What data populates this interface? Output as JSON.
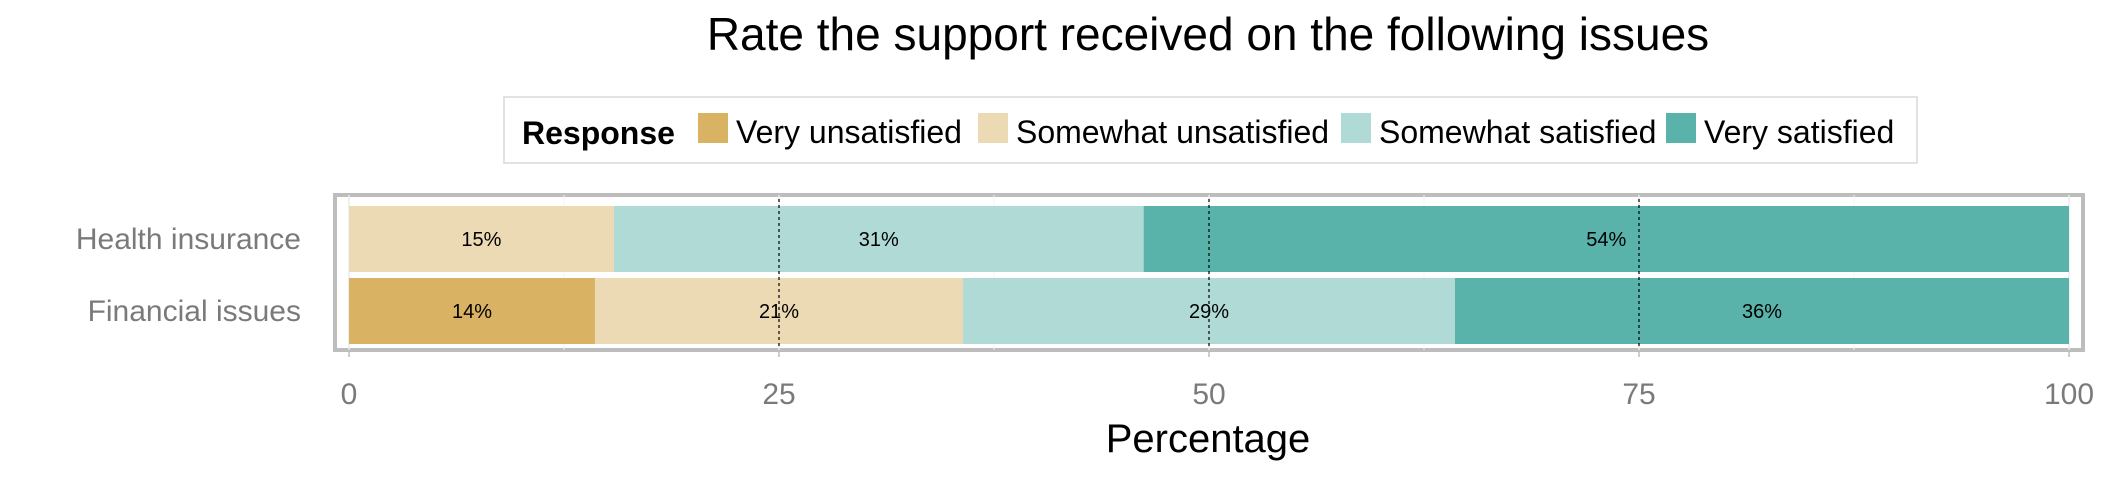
{
  "chart_data": {
    "type": "bar",
    "orientation": "horizontal",
    "stacked": true,
    "title": "Rate the support received on the following issues",
    "xlabel": "Percentage",
    "ylabel": "",
    "xlim": [
      0,
      100
    ],
    "x_ticks": [
      0,
      25,
      50,
      75,
      100
    ],
    "x_tick_labels": [
      "0",
      "25",
      "50",
      "75",
      "100"
    ],
    "reference_lines": [
      25,
      50,
      75
    ],
    "grid": true,
    "legend": {
      "title": "Response",
      "position": "top"
    },
    "categories": [
      "Health insurance",
      "Financial issues"
    ],
    "series": [
      {
        "name": "Very unsatisfied",
        "color": "#d9b264",
        "values": [
          0,
          14.3
        ],
        "labels": [
          "",
          "14%"
        ]
      },
      {
        "name": "Somewhat unsatisfied",
        "color": "#ebdab4",
        "values": [
          15.4,
          21.4
        ],
        "labels": [
          "15%",
          "21%"
        ]
      },
      {
        "name": "Somewhat satisfied",
        "color": "#afdad6",
        "values": [
          30.8,
          28.6
        ],
        "labels": [
          "31%",
          "29%"
        ]
      },
      {
        "name": "Very satisfied",
        "color": "#5ab3ab",
        "values": [
          53.8,
          35.7
        ],
        "labels": [
          "54%",
          "36%"
        ]
      }
    ]
  }
}
